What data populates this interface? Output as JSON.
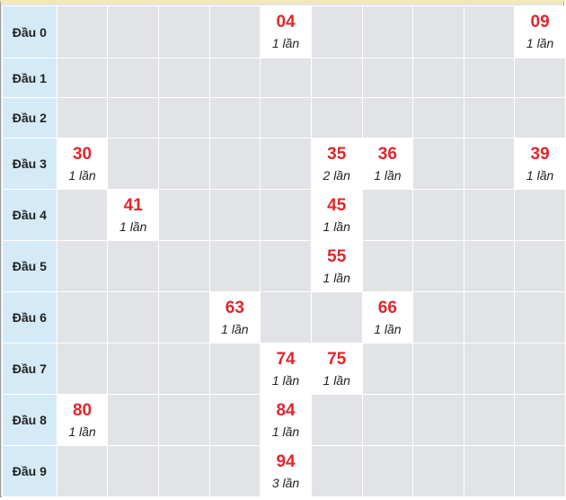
{
  "rows": [
    {
      "label": "Đầu 0",
      "cells": [
        null,
        null,
        null,
        null,
        {
          "num": "04",
          "count": "1 lần"
        },
        null,
        null,
        null,
        null,
        {
          "num": "09",
          "count": "1 lần"
        }
      ]
    },
    {
      "label": "Đầu 1",
      "cells": [
        null,
        null,
        null,
        null,
        null,
        null,
        null,
        null,
        null,
        null
      ]
    },
    {
      "label": "Đầu 2",
      "cells": [
        null,
        null,
        null,
        null,
        null,
        null,
        null,
        null,
        null,
        null
      ]
    },
    {
      "label": "Đầu 3",
      "cells": [
        {
          "num": "30",
          "count": "1 lần"
        },
        null,
        null,
        null,
        null,
        {
          "num": "35",
          "count": "2 lần"
        },
        {
          "num": "36",
          "count": "1 lần"
        },
        null,
        null,
        {
          "num": "39",
          "count": "1 lần"
        }
      ]
    },
    {
      "label": "Đầu 4",
      "cells": [
        null,
        {
          "num": "41",
          "count": "1 lần"
        },
        null,
        null,
        null,
        {
          "num": "45",
          "count": "1 lần"
        },
        null,
        null,
        null,
        null
      ]
    },
    {
      "label": "Đầu 5",
      "cells": [
        null,
        null,
        null,
        null,
        null,
        {
          "num": "55",
          "count": "1 lần"
        },
        null,
        null,
        null,
        null
      ]
    },
    {
      "label": "Đầu 6",
      "cells": [
        null,
        null,
        null,
        {
          "num": "63",
          "count": "1 lần"
        },
        null,
        null,
        {
          "num": "66",
          "count": "1 lần"
        },
        null,
        null,
        null
      ]
    },
    {
      "label": "Đầu 7",
      "cells": [
        null,
        null,
        null,
        null,
        {
          "num": "74",
          "count": "1 lần"
        },
        {
          "num": "75",
          "count": "1 lần"
        },
        null,
        null,
        null,
        null
      ]
    },
    {
      "label": "Đầu 8",
      "cells": [
        {
          "num": "80",
          "count": "1 lần"
        },
        null,
        null,
        null,
        {
          "num": "84",
          "count": "1 lần"
        },
        null,
        null,
        null,
        null,
        null
      ]
    },
    {
      "label": "Đầu 9",
      "cells": [
        null,
        null,
        null,
        null,
        {
          "num": "94",
          "count": "3 lần"
        },
        null,
        null,
        null,
        null,
        null
      ]
    }
  ]
}
